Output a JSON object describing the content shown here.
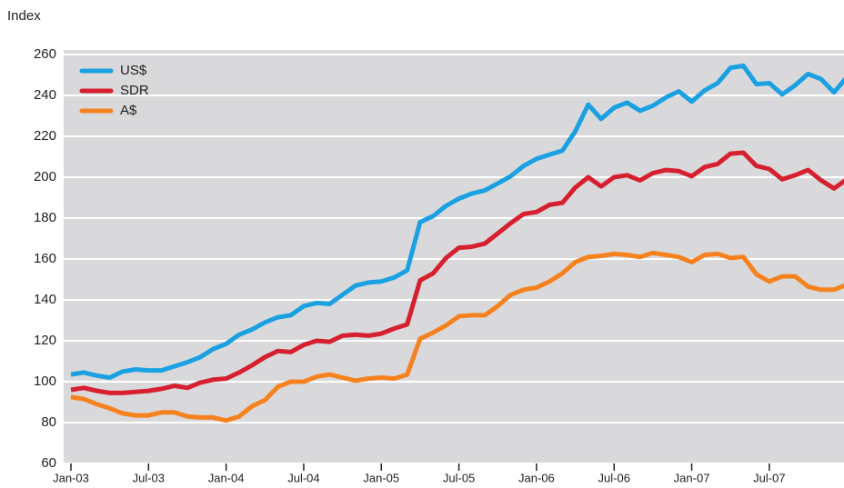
{
  "chart_data": {
    "type": "line",
    "y_label": "Index",
    "categories": [
      "Jan-03",
      null,
      null,
      null,
      null,
      null,
      "Jul-03",
      null,
      null,
      null,
      null,
      null,
      "Jan-04",
      null,
      null,
      null,
      null,
      null,
      "Jul-04",
      null,
      null,
      null,
      null,
      null,
      "Jan-05",
      null,
      null,
      null,
      null,
      null,
      "Jul-05",
      null,
      null,
      null,
      null,
      null,
      "Jan-06",
      null,
      null,
      null,
      null,
      null,
      "Jul-06",
      null,
      null,
      null,
      null,
      null,
      "Jan-07",
      null,
      null,
      null,
      null,
      null,
      "Jul-07",
      null,
      null,
      null,
      null,
      null,
      null
    ],
    "series": [
      {
        "name": "US$",
        "color": "#1ba1e2",
        "values": [
          103.5,
          104.5,
          103,
          102,
          105,
          106,
          105.5,
          105.5,
          107.5,
          109.5,
          112,
          116,
          118.5,
          123,
          125.5,
          129,
          131.5,
          132.5,
          137,
          138.5,
          138,
          142.5,
          147,
          148.5,
          149,
          151,
          154.5,
          178,
          181,
          186,
          189.5,
          192,
          193.5,
          197,
          200.5,
          205.5,
          209,
          211,
          213,
          222.5,
          235.5,
          228.5,
          234,
          236.5,
          232.5,
          235,
          239,
          242,
          237,
          242.5,
          246,
          253.5,
          254.5,
          245.5,
          246,
          240.5,
          245,
          250.5,
          248,
          241.5,
          249
        ]
      },
      {
        "name": "SDR",
        "color": "#d6202f",
        "values": [
          96,
          97,
          95.5,
          94.5,
          94.5,
          95,
          95.5,
          96.5,
          98,
          97,
          99.5,
          101,
          101.5,
          104.5,
          108,
          112,
          115,
          114.5,
          118,
          120,
          119.5,
          122.5,
          123,
          122.5,
          123.5,
          126,
          128,
          149.5,
          153,
          160.5,
          165.5,
          166,
          167.5,
          172.5,
          177.5,
          182,
          183,
          186.5,
          187.5,
          195,
          200,
          195.5,
          200,
          201,
          198.5,
          202,
          203.5,
          203,
          200.5,
          205,
          206.5,
          211.5,
          212,
          205.5,
          204,
          199,
          201,
          203.5,
          198.5,
          194.5,
          199
        ]
      },
      {
        "name": "A$",
        "color": "#f5821f",
        "values": [
          92.5,
          91.5,
          89,
          87,
          84.5,
          83.5,
          83.5,
          85,
          85,
          83,
          82.5,
          82.5,
          81,
          83,
          88,
          91,
          97.5,
          100,
          100,
          102.5,
          103.5,
          102,
          100.5,
          101.5,
          102,
          101.5,
          103.5,
          121,
          124,
          127.5,
          132,
          132.5,
          132.5,
          137,
          142.5,
          145,
          146,
          149,
          153,
          158.5,
          161,
          161.5,
          162.5,
          162,
          161,
          163,
          162,
          161,
          158.5,
          162,
          162.5,
          160.5,
          161,
          152.5,
          149,
          151.5,
          151.5,
          146.5,
          145,
          145,
          147.5
        ]
      }
    ],
    "ylim": [
      60,
      260
    ],
    "yticks": [
      60,
      80,
      100,
      120,
      140,
      160,
      180,
      200,
      220,
      240,
      260
    ],
    "grid": true,
    "legend": "upper left"
  }
}
